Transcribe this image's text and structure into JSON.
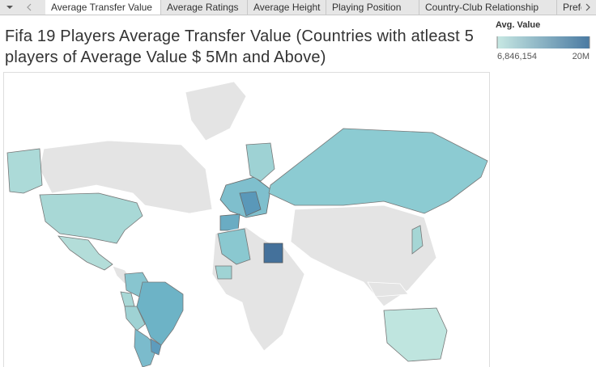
{
  "tabs": [
    "Average Transfer Value",
    "Average Ratings",
    "Average Height",
    "Playing Position",
    "Country-Club Relationship",
    "Prefe"
  ],
  "active_tab": 0,
  "title": "Fifa 19 Players Average Transfer Value (Countries with atleast 5 players of Average Value $ 5Mn and Above)",
  "legend": {
    "title": "Avg. Value",
    "min": {
      "value": 6846154,
      "label": "6,846,154"
    },
    "max": {
      "value": 20000000,
      "label": "20M"
    },
    "colors": [
      "#c7e8e3",
      "#4a7aa2"
    ]
  }
}
